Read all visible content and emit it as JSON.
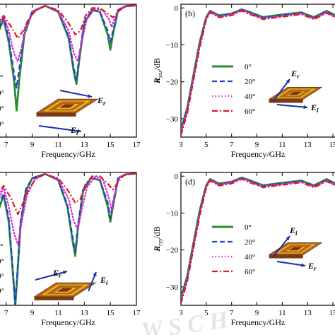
{
  "chart_data": [
    {
      "id": "a",
      "type": "line",
      "panel_label": "",
      "xlabel": "Frequency/GHz",
      "ylabel": "",
      "xlim": [
        6.2,
        17
      ],
      "ylim": [
        -35,
        0
      ],
      "x_ticks": [
        "7",
        "9",
        "11",
        "13",
        "15",
        "17"
      ],
      "legend_fragments": [
        "°",
        "0°",
        "0°",
        "0°"
      ],
      "field_labels": [
        "E",
        "r",
        "E",
        "i"
      ],
      "series": [
        {
          "color": "#2e8b2e",
          "style": "solid",
          "x": [
            6.2,
            6.8,
            7.2,
            7.6,
            7.8,
            8.0,
            8.4,
            9.0,
            10.0,
            11.0,
            11.8,
            12.2,
            12.4,
            12.6,
            13.0,
            13.6,
            14.2,
            14.8,
            15.0,
            15.2,
            15.6,
            16.2,
            17.0
          ],
          "y": [
            -9,
            -4,
            -10,
            -20,
            -28,
            -20,
            -8,
            -2,
            -0.4,
            -2,
            -9,
            -18,
            -21,
            -15,
            -5,
            -1.5,
            -2,
            -8,
            -12,
            -8,
            -1.5,
            -0.5,
            -0.3
          ]
        },
        {
          "color": "#1f3fd6",
          "style": "dash",
          "x": [
            6.2,
            6.8,
            7.2,
            7.6,
            7.8,
            8.0,
            8.4,
            9.0,
            10.0,
            11.0,
            11.8,
            12.2,
            12.4,
            12.6,
            13.0,
            13.6,
            14.2,
            14.8,
            15.0,
            15.2,
            15.6,
            16.2,
            17.0
          ],
          "y": [
            -8,
            -3.5,
            -9,
            -18,
            -22,
            -17,
            -7,
            -2,
            -0.4,
            -2,
            -8.5,
            -17,
            -20,
            -14,
            -4.5,
            -1.5,
            -2,
            -7,
            -10,
            -7,
            -1.5,
            -0.5,
            -0.3
          ]
        },
        {
          "color": "#e020e0",
          "style": "dot",
          "x": [
            6.2,
            6.8,
            7.2,
            7.6,
            7.9,
            8.2,
            8.6,
            9.2,
            10.0,
            11.0,
            11.8,
            12.2,
            12.5,
            12.8,
            13.2,
            13.8,
            14.4,
            14.9,
            15.1,
            15.3,
            15.7,
            16.2,
            17.0
          ],
          "y": [
            -7,
            -3,
            -7,
            -13,
            -15,
            -11,
            -5,
            -1.5,
            -0.4,
            -1.8,
            -7,
            -13,
            -15,
            -10,
            -4,
            -1.2,
            -1.5,
            -4,
            -6,
            -4,
            -1.2,
            -0.4,
            -0.3
          ]
        },
        {
          "color": "#e01818",
          "style": "dashdot",
          "x": [
            6.2,
            6.8,
            7.4,
            7.9,
            8.3,
            8.7,
            9.3,
            10.0,
            11.0,
            11.8,
            12.3,
            12.7,
            13.1,
            13.6,
            14.2,
            14.8,
            15.2,
            15.6,
            16.0,
            16.5,
            17.0
          ],
          "y": [
            -6,
            -3,
            -6,
            -9,
            -7,
            -4,
            -1.5,
            -0.5,
            -1.5,
            -5,
            -8,
            -7,
            -3,
            -1,
            -1,
            -2.5,
            -3.5,
            -2,
            -0.8,
            -0.4,
            -0.3
          ]
        }
      ]
    },
    {
      "id": "b",
      "type": "line",
      "panel_label": "(b)",
      "xlabel": "Frequency/GHz",
      "ylabel_main": "R",
      "ylabel_sub": "yxx",
      "ylabel_unit": "/dB",
      "xlim": [
        3,
        15.5
      ],
      "ylim": [
        -35,
        1
      ],
      "x_ticks": [
        "3",
        "5",
        "7",
        "9",
        "11",
        "13",
        "15"
      ],
      "y_ticks": [
        "0",
        "−10",
        "−20",
        "−30"
      ],
      "legend": [
        "0°",
        "20°",
        "40°",
        "60°"
      ],
      "field_labels": [
        "E",
        "r",
        "E",
        "i"
      ],
      "series": [
        {
          "color": "#2e8b2e",
          "style": "solid",
          "x": [
            3,
            3.5,
            4,
            4.5,
            5,
            5.3,
            6,
            7,
            7.8,
            8.5,
            9.5,
            10.5,
            11.5,
            12.5,
            13.5,
            14.5,
            15.5
          ],
          "y": [
            -33,
            -27,
            -18,
            -9,
            -2.5,
            -0.8,
            -2,
            -1.5,
            -0.4,
            -1.2,
            -2.5,
            -2,
            -1.6,
            -1.2,
            -2.5,
            -0.8,
            -2.5
          ]
        },
        {
          "color": "#1f3fd6",
          "style": "dash",
          "x": [
            3,
            3.5,
            4,
            4.5,
            5,
            5.3,
            6,
            7,
            7.8,
            8.5,
            9.5,
            10.5,
            11.5,
            12.5,
            13.5,
            14.5,
            15.5
          ],
          "y": [
            -33.5,
            -27.5,
            -18.5,
            -9.5,
            -2.8,
            -0.9,
            -2.2,
            -1.6,
            -0.5,
            -1.4,
            -2.7,
            -2.2,
            -1.8,
            -1.3,
            -2.7,
            -1,
            -2.7
          ]
        },
        {
          "color": "#e020e0",
          "style": "dot",
          "x": [
            3,
            3.5,
            4,
            4.5,
            5,
            5.3,
            6,
            7,
            7.8,
            8.5,
            9.5,
            10.5,
            11.5,
            12.5,
            13.5,
            14.5,
            15.5
          ],
          "y": [
            -34,
            -28,
            -19,
            -10,
            -3,
            -1,
            -2.4,
            -1.8,
            -0.6,
            -1.6,
            -2.9,
            -2.4,
            -2,
            -1.5,
            -2.9,
            -1.2,
            -2.9
          ]
        },
        {
          "color": "#e01818",
          "style": "dashdot",
          "x": [
            3,
            3.5,
            4,
            4.5,
            5,
            5.3,
            6,
            7,
            7.8,
            8.5,
            9.5,
            10.5,
            11.5,
            12.5,
            13.5,
            14.5,
            15.5
          ],
          "y": [
            -34.5,
            -28.5,
            -19.5,
            -10.5,
            -3.2,
            -1.2,
            -2.6,
            -2,
            -0.8,
            -1.8,
            -3.1,
            -2.6,
            -2.2,
            -1.7,
            -3.1,
            -1.4,
            -3.1
          ]
        }
      ]
    },
    {
      "id": "c",
      "type": "line",
      "panel_label": "",
      "xlabel": "Frequency/GHz",
      "ylabel": "",
      "xlim": [
        6.2,
        17
      ],
      "ylim": [
        -35,
        0
      ],
      "x_ticks": [
        "7",
        "9",
        "11",
        "13",
        "15",
        "17"
      ],
      "legend_fragments": [
        "°",
        "0°",
        "0°",
        "0°"
      ],
      "field_labels": [
        "E",
        "r",
        "E",
        "i"
      ],
      "series": [
        {
          "color": "#2e8b2e",
          "style": "solid",
          "x": [
            6.2,
            6.8,
            7.2,
            7.5,
            7.7,
            7.9,
            8.1,
            8.5,
            9.0,
            10.0,
            11.0,
            11.7,
            12.1,
            12.3,
            12.5,
            12.9,
            13.5,
            14.2,
            14.8,
            15.0,
            15.2,
            15.6,
            16.2,
            17.0
          ],
          "y": [
            -12,
            -6,
            -13,
            -26,
            -35,
            -25,
            -14,
            -5,
            -1.5,
            -0.4,
            -2,
            -9,
            -18,
            -22,
            -15,
            -5,
            -1.5,
            -2,
            -9,
            -13,
            -9,
            -1.5,
            -0.5,
            -0.3
          ]
        },
        {
          "color": "#1f3fd6",
          "style": "dash",
          "x": [
            6.2,
            6.8,
            7.2,
            7.5,
            7.7,
            7.9,
            8.1,
            8.5,
            9.0,
            10.0,
            11.0,
            11.7,
            12.1,
            12.3,
            12.5,
            12.9,
            13.5,
            14.2,
            14.8,
            15.0,
            15.2,
            15.6,
            16.2,
            17.0
          ],
          "y": [
            -11,
            -5.5,
            -12,
            -25,
            -35,
            -24,
            -13,
            -4.5,
            -1.5,
            -0.4,
            -2,
            -8.5,
            -17,
            -21,
            -14,
            -4.5,
            -1.5,
            -2,
            -8,
            -12,
            -8,
            -1.5,
            -0.5,
            -0.3
          ]
        },
        {
          "color": "#e020e0",
          "style": "dot",
          "x": [
            6.2,
            6.8,
            7.2,
            7.6,
            7.9,
            8.2,
            8.6,
            9.2,
            10.0,
            11.0,
            11.8,
            12.2,
            12.5,
            12.8,
            13.2,
            13.8,
            14.4,
            14.9,
            15.1,
            15.3,
            15.7,
            16.2,
            17.0
          ],
          "y": [
            -9,
            -4,
            -9,
            -16,
            -19,
            -13,
            -6,
            -1.8,
            -0.4,
            -1.8,
            -7,
            -13,
            -15,
            -10,
            -4,
            -1.2,
            -1.5,
            -7,
            -10,
            -6,
            -1.2,
            -0.4,
            -0.3
          ]
        },
        {
          "color": "#e01818",
          "style": "dashdot",
          "x": [
            6.2,
            6.8,
            7.4,
            7.9,
            8.3,
            8.7,
            9.3,
            10.0,
            11.0,
            11.8,
            12.3,
            12.7,
            13.1,
            13.6,
            14.2,
            14.8,
            15.2,
            15.6,
            16.0,
            16.5,
            17.0
          ],
          "y": [
            -7,
            -3.5,
            -7,
            -11,
            -8,
            -4.5,
            -1.5,
            -0.5,
            -1.5,
            -5,
            -8,
            -7,
            -3,
            -1,
            -1,
            -3,
            -4.5,
            -2.5,
            -0.8,
            -0.4,
            -0.3
          ]
        }
      ]
    },
    {
      "id": "d",
      "type": "line",
      "panel_label": "(d)",
      "xlabel": "Frequency/GHz",
      "ylabel_main": "R",
      "ylabel_sub": "ryy",
      "ylabel_unit": "/dB",
      "xlim": [
        3,
        15.5
      ],
      "ylim": [
        -35,
        1
      ],
      "x_ticks": [
        "3",
        "5",
        "7",
        "9",
        "11",
        "13",
        "15"
      ],
      "y_ticks": [
        "0",
        "−10",
        "−20",
        "−30"
      ],
      "legend": [
        "0°",
        "20°",
        "40°",
        "60°"
      ],
      "field_labels": [
        "E",
        "i",
        "E",
        "r"
      ],
      "series": [
        {
          "color": "#2e8b2e",
          "style": "solid",
          "x": [
            3,
            3.5,
            4,
            4.5,
            5,
            5.3,
            6,
            7,
            7.8,
            8.5,
            9.5,
            10.5,
            11.5,
            12.5,
            13.5,
            14.5,
            15.5
          ],
          "y": [
            -33,
            -27,
            -18,
            -9,
            -2.5,
            -0.8,
            -2,
            -1.5,
            -0.4,
            -1.2,
            -2.5,
            -2,
            -1.6,
            -1.2,
            -2.5,
            -0.8,
            -2.5
          ]
        },
        {
          "color": "#1f3fd6",
          "style": "dash",
          "x": [
            3,
            3.5,
            4,
            4.5,
            5,
            5.3,
            6,
            7,
            7.8,
            8.5,
            9.5,
            10.5,
            11.5,
            12.5,
            13.5,
            14.5,
            15.5
          ],
          "y": [
            -33.5,
            -27.5,
            -18.5,
            -9.5,
            -2.8,
            -0.9,
            -2.2,
            -1.6,
            -0.5,
            -1.4,
            -2.7,
            -2.2,
            -1.8,
            -1.3,
            -2.7,
            -1,
            -2.7
          ]
        },
        {
          "color": "#e020e0",
          "style": "dot",
          "x": [
            3,
            3.5,
            4,
            4.5,
            5,
            5.3,
            6,
            7,
            7.8,
            8.5,
            9.5,
            10.5,
            11.5,
            12.5,
            13.5,
            14.5,
            15.5
          ],
          "y": [
            -34,
            -28,
            -19,
            -10,
            -3,
            -1,
            -2.4,
            -1.8,
            -0.6,
            -1.6,
            -2.9,
            -2.4,
            -2,
            -1.5,
            -2.9,
            -1.2,
            -2.9
          ]
        },
        {
          "color": "#e01818",
          "style": "dashdot",
          "x": [
            3,
            3.5,
            4,
            4.5,
            5,
            5.3,
            6,
            7,
            7.8,
            8.5,
            9.5,
            10.5,
            11.5,
            12.5,
            13.5,
            14.5,
            15.5
          ],
          "y": [
            -34.5,
            -28.5,
            -19.5,
            -10.5,
            -3.2,
            -1.2,
            -2.6,
            -2,
            -0.8,
            -1.8,
            -3.1,
            -2.6,
            -2.2,
            -1.7,
            -3.1,
            -1.4,
            -3.1
          ]
        }
      ]
    }
  ]
}
